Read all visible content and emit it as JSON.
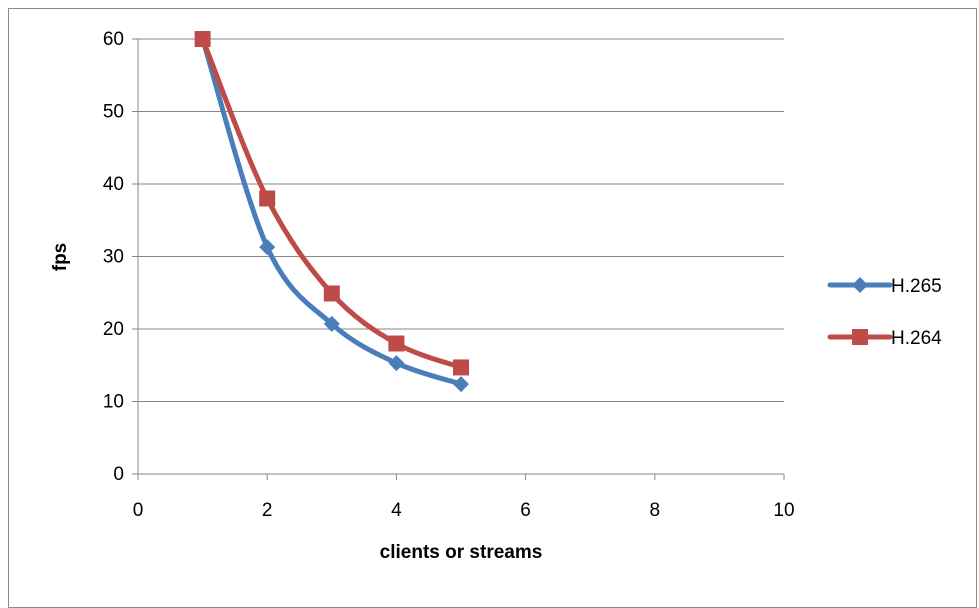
{
  "chart_data": {
    "type": "scatter",
    "title": "",
    "xlabel": "clients or streams",
    "ylabel": "fps",
    "xlim": [
      0,
      10
    ],
    "ylim": [
      0,
      60
    ],
    "x_ticks": [
      0,
      2,
      4,
      6,
      8,
      10
    ],
    "y_ticks": [
      0,
      10,
      20,
      30,
      40,
      50,
      60
    ],
    "grid": "horizontal",
    "smooth_lines": true,
    "legend_position": "right",
    "series": [
      {
        "name": "H.265",
        "color": "#4a7ebb",
        "marker": "diamond",
        "x": [
          1,
          2,
          3,
          4,
          5
        ],
        "y": [
          60,
          31.3,
          20.7,
          15.3,
          12.4
        ]
      },
      {
        "name": "H.264",
        "color": "#be4b48",
        "marker": "square",
        "x": [
          1,
          2,
          3,
          4,
          5
        ],
        "y": [
          60,
          38,
          24.9,
          18,
          14.7
        ]
      }
    ]
  }
}
